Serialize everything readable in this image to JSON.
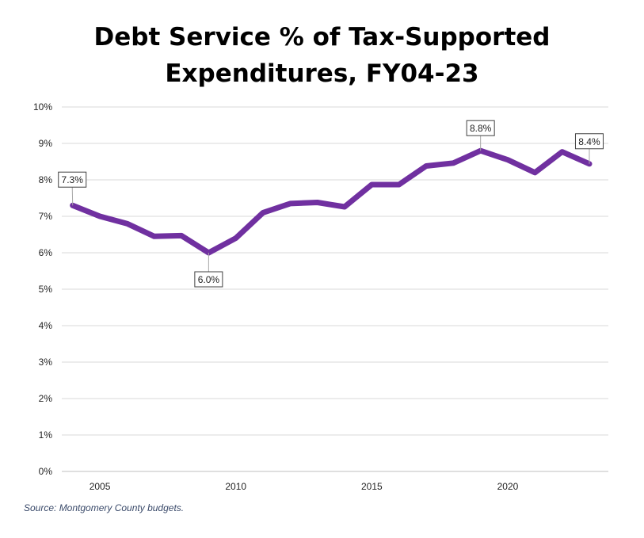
{
  "chart_data": {
    "type": "line",
    "title_lines": [
      "Debt Service % of Tax-Supported",
      "Expenditures, FY04-23"
    ],
    "xlabel": "",
    "ylabel": "",
    "x": [
      2004,
      2005,
      2006,
      2007,
      2008,
      2009,
      2010,
      2011,
      2012,
      2013,
      2014,
      2015,
      2016,
      2017,
      2018,
      2019,
      2020,
      2021,
      2022,
      2023
    ],
    "series": [
      {
        "values": [
          7.3,
          7.0,
          6.8,
          6.45,
          6.47,
          6.0,
          6.4,
          7.1,
          7.35,
          7.38,
          7.26,
          7.87,
          7.87,
          8.38,
          8.46,
          8.8,
          8.55,
          8.2,
          8.77,
          8.44
        ],
        "color": "#7030a0"
      }
    ],
    "ylim": [
      0,
      10
    ],
    "xlim": [
      2003.6,
      2023.7
    ],
    "y_ticks": [
      0,
      1,
      2,
      3,
      4,
      5,
      6,
      7,
      8,
      9,
      10
    ],
    "y_tick_labels": [
      "0%",
      "1%",
      "2%",
      "3%",
      "4%",
      "5%",
      "6%",
      "7%",
      "8%",
      "9%",
      "10%"
    ],
    "x_ticks": [
      2005,
      2010,
      2015,
      2020
    ],
    "x_tick_labels": [
      "2005",
      "2010",
      "2015",
      "2020"
    ],
    "grid": true,
    "legend": "none",
    "data_labels": [
      {
        "x": 2004,
        "text": "7.3%",
        "placement": "above-left"
      },
      {
        "x": 2009,
        "text": "6.0%",
        "placement": "below"
      },
      {
        "x": 2019,
        "text": "8.8%",
        "placement": "above"
      },
      {
        "x": 2023,
        "text": "8.4%",
        "placement": "above"
      }
    ]
  },
  "source": "Source: Montgomery County budgets."
}
